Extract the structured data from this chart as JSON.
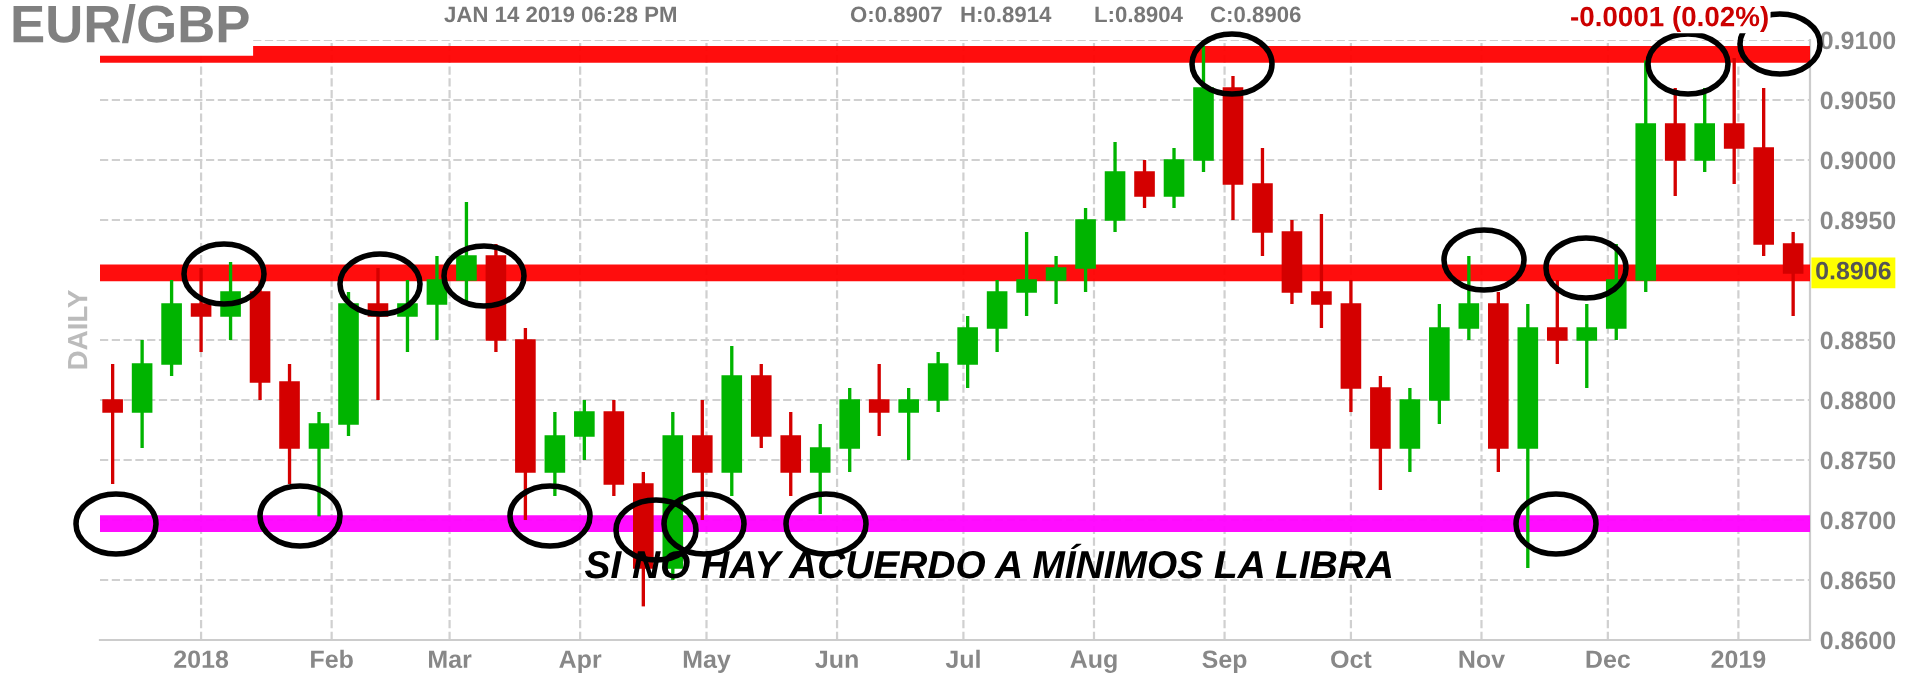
{
  "chart_data": {
    "type": "candlestick",
    "title": "EUR/GBP",
    "ylabel": "DAILY",
    "annotations": [
      "JAN 14 2019 06:28 PM",
      "O:0.8907",
      "H:0.8914",
      "L:0.8904",
      "C:0.8906",
      "-0.0001 (0.02%)",
      "SI NO HAY ACUERDO A MÍNIMOS LA LIBRA"
    ],
    "x": [
      "2017-12-11",
      "2017-12-18",
      "2017-12-25",
      "2018-01-01",
      "2018-01-08",
      "2018-01-15",
      "2018-01-22",
      "2018-01-29",
      "2018-02-05",
      "2018-02-12",
      "2018-02-19",
      "2018-02-26",
      "2018-03-05",
      "2018-03-12",
      "2018-03-19",
      "2018-03-26",
      "2018-04-02",
      "2018-04-09",
      "2018-04-16",
      "2018-04-23",
      "2018-04-30",
      "2018-05-07",
      "2018-05-14",
      "2018-05-21",
      "2018-05-28",
      "2018-06-04",
      "2018-06-11",
      "2018-06-18",
      "2018-06-25",
      "2018-07-02",
      "2018-07-09",
      "2018-07-16",
      "2018-07-23",
      "2018-07-30",
      "2018-08-06",
      "2018-08-13",
      "2018-08-20",
      "2018-08-27",
      "2018-09-03",
      "2018-09-10",
      "2018-09-17",
      "2018-09-24",
      "2018-10-01",
      "2018-10-08",
      "2018-10-15",
      "2018-10-22",
      "2018-10-29",
      "2018-11-05",
      "2018-11-12",
      "2018-11-19",
      "2018-11-26",
      "2018-12-03",
      "2018-12-10",
      "2018-12-17",
      "2018-12-24",
      "2018-12-31",
      "2019-01-07",
      "2019-01-14"
    ],
    "ohlc": [
      [
        0.88,
        0.883,
        0.873,
        0.879
      ],
      [
        0.879,
        0.885,
        0.876,
        0.883
      ],
      [
        0.883,
        0.89,
        0.882,
        0.888
      ],
      [
        0.888,
        0.891,
        0.884,
        0.887
      ],
      [
        0.887,
        0.8915,
        0.885,
        0.889
      ],
      [
        0.889,
        0.89,
        0.88,
        0.8815
      ],
      [
        0.8815,
        0.883,
        0.873,
        0.876
      ],
      [
        0.876,
        0.879,
        0.8703,
        0.878
      ],
      [
        0.878,
        0.889,
        0.877,
        0.888
      ],
      [
        0.888,
        0.891,
        0.88,
        0.887
      ],
      [
        0.887,
        0.89,
        0.884,
        0.888
      ],
      [
        0.888,
        0.892,
        0.885,
        0.89
      ],
      [
        0.89,
        0.8965,
        0.888,
        0.892
      ],
      [
        0.892,
        0.893,
        0.884,
        0.885
      ],
      [
        0.885,
        0.886,
        0.87,
        0.874
      ],
      [
        0.874,
        0.879,
        0.872,
        0.877
      ],
      [
        0.877,
        0.88,
        0.875,
        0.879
      ],
      [
        0.879,
        0.88,
        0.872,
        0.873
      ],
      [
        0.873,
        0.874,
        0.8628,
        0.866
      ],
      [
        0.866,
        0.879,
        0.865,
        0.877
      ],
      [
        0.877,
        0.88,
        0.87,
        0.874
      ],
      [
        0.874,
        0.8845,
        0.872,
        0.882
      ],
      [
        0.882,
        0.883,
        0.876,
        0.877
      ],
      [
        0.877,
        0.879,
        0.872,
        0.874
      ],
      [
        0.874,
        0.878,
        0.8705,
        0.876
      ],
      [
        0.876,
        0.881,
        0.874,
        0.88
      ],
      [
        0.88,
        0.883,
        0.877,
        0.879
      ],
      [
        0.879,
        0.881,
        0.875,
        0.88
      ],
      [
        0.88,
        0.884,
        0.879,
        0.883
      ],
      [
        0.883,
        0.887,
        0.881,
        0.886
      ],
      [
        0.886,
        0.89,
        0.884,
        0.889
      ],
      [
        0.889,
        0.894,
        0.887,
        0.89
      ],
      [
        0.89,
        0.892,
        0.888,
        0.891
      ],
      [
        0.891,
        0.896,
        0.889,
        0.895
      ],
      [
        0.895,
        0.9015,
        0.894,
        0.899
      ],
      [
        0.899,
        0.9,
        0.896,
        0.897
      ],
      [
        0.897,
        0.901,
        0.896,
        0.9
      ],
      [
        0.9,
        0.9095,
        0.899,
        0.906
      ],
      [
        0.906,
        0.907,
        0.895,
        0.898
      ],
      [
        0.898,
        0.901,
        0.892,
        0.894
      ],
      [
        0.894,
        0.895,
        0.888,
        0.889
      ],
      [
        0.889,
        0.8955,
        0.886,
        0.888
      ],
      [
        0.888,
        0.89,
        0.879,
        0.881
      ],
      [
        0.881,
        0.882,
        0.8725,
        0.876
      ],
      [
        0.876,
        0.881,
        0.874,
        0.88
      ],
      [
        0.88,
        0.888,
        0.878,
        0.886
      ],
      [
        0.886,
        0.892,
        0.885,
        0.888
      ],
      [
        0.888,
        0.889,
        0.874,
        0.876
      ],
      [
        0.876,
        0.888,
        0.866,
        0.886
      ],
      [
        0.886,
        0.89,
        0.883,
        0.885
      ],
      [
        0.885,
        0.888,
        0.881,
        0.886
      ],
      [
        0.886,
        0.893,
        0.885,
        0.89
      ],
      [
        0.89,
        0.9083,
        0.889,
        0.903
      ],
      [
        0.903,
        0.906,
        0.897,
        0.9
      ],
      [
        0.9,
        0.906,
        0.899,
        0.903
      ],
      [
        0.903,
        0.9085,
        0.898,
        0.901
      ],
      [
        0.901,
        0.906,
        0.892,
        0.893
      ],
      [
        0.893,
        0.894,
        0.887,
        0.8906
      ]
    ],
    "colors": [
      "#d40000",
      "#00b400",
      "#00b400",
      "#d40000",
      "#00b400",
      "#d40000",
      "#d40000",
      "#00b400",
      "#00b400",
      "#d40000",
      "#00b400",
      "#00b400",
      "#00b400",
      "#d40000",
      "#d40000",
      "#00b400",
      "#00b400",
      "#d40000",
      "#d40000",
      "#00b400",
      "#d40000",
      "#00b400",
      "#d40000",
      "#d40000",
      "#00b400",
      "#00b400",
      "#d40000",
      "#00b400",
      "#00b400",
      "#00b400",
      "#00b400",
      "#00b400",
      "#00b400",
      "#00b400",
      "#00b400",
      "#d40000",
      "#00b400",
      "#00b400",
      "#d40000",
      "#d40000",
      "#d40000",
      "#d40000",
      "#d40000",
      "#d40000",
      "#00b400",
      "#00b400",
      "#00b400",
      "#d40000",
      "#00b400",
      "#d40000",
      "#00b400",
      "#00b400",
      "#00b400",
      "#d40000",
      "#00b400",
      "#d40000",
      "#d40000",
      "#d40000"
    ],
    "xlim": [
      "2017-12-08",
      "2019-01-18"
    ],
    "xticks": [
      {
        "value": "2018-01-01",
        "label": "2018"
      },
      {
        "value": "2018-02-01",
        "label": "Feb"
      },
      {
        "value": "2018-03-01",
        "label": "Mar"
      },
      {
        "value": "2018-04-01",
        "label": "Apr"
      },
      {
        "value": "2018-05-01",
        "label": "May"
      },
      {
        "value": "2018-06-01",
        "label": "Jun"
      },
      {
        "value": "2018-07-01",
        "label": "Jul"
      },
      {
        "value": "2018-08-01",
        "label": "Aug"
      },
      {
        "value": "2018-09-01",
        "label": "Sep"
      },
      {
        "value": "2018-10-01",
        "label": "Oct"
      },
      {
        "value": "2018-11-01",
        "label": "Nov"
      },
      {
        "value": "2018-12-01",
        "label": "Dec"
      },
      {
        "value": "2019-01-01",
        "label": "2019"
      }
    ],
    "ylim": [
      0.86,
      0.91
    ],
    "yticks": [
      {
        "value": 0.86,
        "label": "0.8600"
      },
      {
        "value": 0.865,
        "label": "0.8650"
      },
      {
        "value": 0.87,
        "label": "0.8700"
      },
      {
        "value": 0.875,
        "label": "0.8750"
      },
      {
        "value": 0.88,
        "label": "0.8800"
      },
      {
        "value": 0.885,
        "label": "0.8850"
      },
      {
        "value": 0.895,
        "label": "0.8950"
      },
      {
        "value": 0.9,
        "label": "0.9000"
      },
      {
        "value": 0.905,
        "label": "0.9050"
      },
      {
        "value": 0.91,
        "label": "0.9100"
      }
    ],
    "ref_lines": [
      {
        "axis": "y",
        "value": 0.8906,
        "label": "0.8906",
        "color": "#ff0000"
      },
      {
        "axis": "y",
        "value": 0.9088,
        "label": null,
        "color": "#ff0000"
      },
      {
        "axis": "y",
        "value": 0.8697,
        "label": null,
        "color": "#ff00ff"
      }
    ],
    "grid": true,
    "legend": false
  }
}
